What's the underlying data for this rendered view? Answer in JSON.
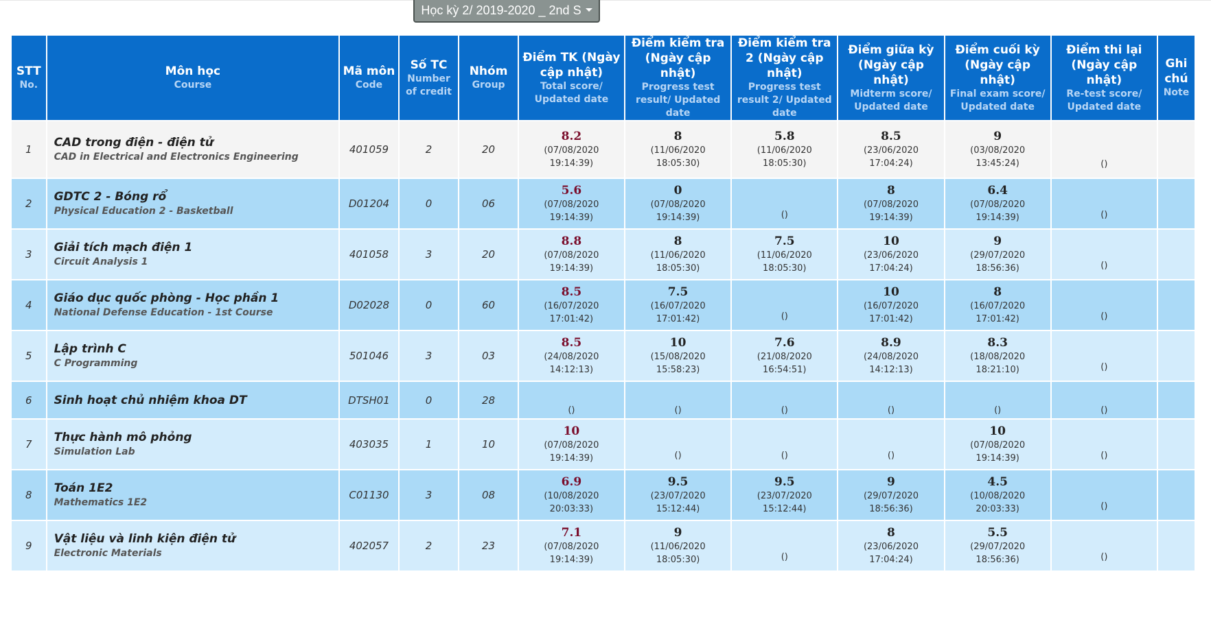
{
  "semester_select": {
    "value": "Học kỳ 2/ 2019-2020 _ 2nd S"
  },
  "headers": {
    "stt": {
      "vi": "STT",
      "en": "No."
    },
    "course": {
      "vi": "Môn học",
      "en": "Course"
    },
    "code": {
      "vi": "Mã môn",
      "en": "Code"
    },
    "credits": {
      "vi": "Số TC",
      "en": "Number of credit"
    },
    "group": {
      "vi": "Nhóm",
      "en": "Group"
    },
    "total": {
      "vi": "Điểm TK (Ngày cập nhật)",
      "en": "Total score/ Updated date"
    },
    "progress": {
      "vi": "Điểm kiểm tra (Ngày cập nhật)",
      "en": "Progress test result/ Updated date"
    },
    "progress2": {
      "vi": "Điểm kiểm tra 2 (Ngày cập nhật)",
      "en": "Progress test result 2/ Updated date"
    },
    "midterm": {
      "vi": "Điểm giữa kỳ (Ngày cập nhật)",
      "en": "Midterm score/ Updated date"
    },
    "final": {
      "vi": "Điểm cuối kỳ (Ngày cập nhật)",
      "en": "Final exam score/ Updated date"
    },
    "retest": {
      "vi": "Điểm thi lại (Ngày cập nhật)",
      "en": "Re-test score/ Updated date"
    },
    "note": {
      "vi": "Ghi chú",
      "en": "Note"
    }
  },
  "rows": [
    {
      "no": "1",
      "course_vi": "CAD trong điện - điện tử",
      "course_en": "CAD in Electrical and Electronics Engineering",
      "code": "401059",
      "credits": "2",
      "group": "20",
      "total": {
        "score": "8.2",
        "date": "(07/08/2020 19:14:39)"
      },
      "progress": {
        "score": "8",
        "date": "(11/06/2020 18:05:30)"
      },
      "progress2": {
        "score": "5.8",
        "date": "(11/06/2020 18:05:30)"
      },
      "midterm": {
        "score": "8.5",
        "date": "(23/06/2020 17:04:24)"
      },
      "final": {
        "score": "9",
        "date": "(03/08/2020 13:45:24)"
      },
      "retest": {
        "score": "",
        "date": "()"
      },
      "note": ""
    },
    {
      "no": "2",
      "course_vi": "GDTC 2 - Bóng rổ",
      "course_en": "Physical Education 2 - Basketball",
      "code": "D01204",
      "credits": "0",
      "group": "06",
      "total": {
        "score": "5.6",
        "date": "(07/08/2020 19:14:39)"
      },
      "progress": {
        "score": "0",
        "date": "(07/08/2020 19:14:39)"
      },
      "progress2": {
        "score": "",
        "date": "()"
      },
      "midterm": {
        "score": "8",
        "date": "(07/08/2020 19:14:39)"
      },
      "final": {
        "score": "6.4",
        "date": "(07/08/2020 19:14:39)"
      },
      "retest": {
        "score": "",
        "date": "()"
      },
      "note": ""
    },
    {
      "no": "3",
      "course_vi": "Giải tích mạch điện 1",
      "course_en": "Circuit Analysis 1",
      "code": "401058",
      "credits": "3",
      "group": "20",
      "total": {
        "score": "8.8",
        "date": "(07/08/2020 19:14:39)"
      },
      "progress": {
        "score": "8",
        "date": "(11/06/2020 18:05:30)"
      },
      "progress2": {
        "score": "7.5",
        "date": "(11/06/2020 18:05:30)"
      },
      "midterm": {
        "score": "10",
        "date": "(23/06/2020 17:04:24)"
      },
      "final": {
        "score": "9",
        "date": "(29/07/2020 18:56:36)"
      },
      "retest": {
        "score": "",
        "date": "()"
      },
      "note": ""
    },
    {
      "no": "4",
      "course_vi": "Giáo dục quốc phòng - Học phần 1",
      "course_en": "National Defense Education - 1st Course",
      "code": "D02028",
      "credits": "0",
      "group": "60",
      "total": {
        "score": "8.5",
        "date": "(16/07/2020 17:01:42)"
      },
      "progress": {
        "score": "7.5",
        "date": "(16/07/2020 17:01:42)"
      },
      "progress2": {
        "score": "",
        "date": "()"
      },
      "midterm": {
        "score": "10",
        "date": "(16/07/2020 17:01:42)"
      },
      "final": {
        "score": "8",
        "date": "(16/07/2020 17:01:42)"
      },
      "retest": {
        "score": "",
        "date": "()"
      },
      "note": ""
    },
    {
      "no": "5",
      "course_vi": "Lập trình C",
      "course_en": "C Programming",
      "code": "501046",
      "credits": "3",
      "group": "03",
      "total": {
        "score": "8.5",
        "date": "(24/08/2020 14:12:13)"
      },
      "progress": {
        "score": "10",
        "date": "(15/08/2020 15:58:23)"
      },
      "progress2": {
        "score": "7.6",
        "date": "(21/08/2020 16:54:51)"
      },
      "midterm": {
        "score": "8.9",
        "date": "(24/08/2020 14:12:13)"
      },
      "final": {
        "score": "8.3",
        "date": "(18/08/2020 18:21:10)"
      },
      "retest": {
        "score": "",
        "date": "()"
      },
      "note": ""
    },
    {
      "no": "6",
      "course_vi": "Sinh hoạt chủ nhiệm khoa DT",
      "course_en": "",
      "code": "DTSH01",
      "credits": "0",
      "group": "28",
      "total": {
        "score": "",
        "date": "()"
      },
      "progress": {
        "score": "",
        "date": "()"
      },
      "progress2": {
        "score": "",
        "date": "()"
      },
      "midterm": {
        "score": "",
        "date": "()"
      },
      "final": {
        "score": "",
        "date": "()"
      },
      "retest": {
        "score": "",
        "date": "()"
      },
      "note": ""
    },
    {
      "no": "7",
      "course_vi": "Thực hành mô phỏng",
      "course_en": "Simulation Lab",
      "code": "403035",
      "credits": "1",
      "group": "10",
      "total": {
        "score": "10",
        "date": "(07/08/2020 19:14:39)"
      },
      "progress": {
        "score": "",
        "date": "()"
      },
      "progress2": {
        "score": "",
        "date": "()"
      },
      "midterm": {
        "score": "",
        "date": "()"
      },
      "final": {
        "score": "10",
        "date": "(07/08/2020 19:14:39)"
      },
      "retest": {
        "score": "",
        "date": "()"
      },
      "note": ""
    },
    {
      "no": "8",
      "course_vi": "Toán 1E2",
      "course_en": "Mathematics 1E2",
      "code": "C01130",
      "credits": "3",
      "group": "08",
      "total": {
        "score": "6.9",
        "date": "(10/08/2020 20:03:33)"
      },
      "progress": {
        "score": "9.5",
        "date": "(23/07/2020 15:12:44)"
      },
      "progress2": {
        "score": "9.5",
        "date": "(23/07/2020 15:12:44)"
      },
      "midterm": {
        "score": "9",
        "date": "(29/07/2020 18:56:36)"
      },
      "final": {
        "score": "4.5",
        "date": "(10/08/2020 20:03:33)"
      },
      "retest": {
        "score": "",
        "date": "()"
      },
      "note": ""
    },
    {
      "no": "9",
      "course_vi": "Vật liệu và linh kiện điện tử",
      "course_en": "Electronic Materials",
      "code": "402057",
      "credits": "2",
      "group": "23",
      "total": {
        "score": "7.1",
        "date": "(07/08/2020 19:14:39)"
      },
      "progress": {
        "score": "9",
        "date": "(11/06/2020 18:05:30)"
      },
      "progress2": {
        "score": "",
        "date": "()"
      },
      "midterm": {
        "score": "8",
        "date": "(23/06/2020 17:04:24)"
      },
      "final": {
        "score": "5.5",
        "date": "(29/07/2020 18:56:36)"
      },
      "retest": {
        "score": "",
        "date": "()"
      },
      "note": ""
    }
  ]
}
